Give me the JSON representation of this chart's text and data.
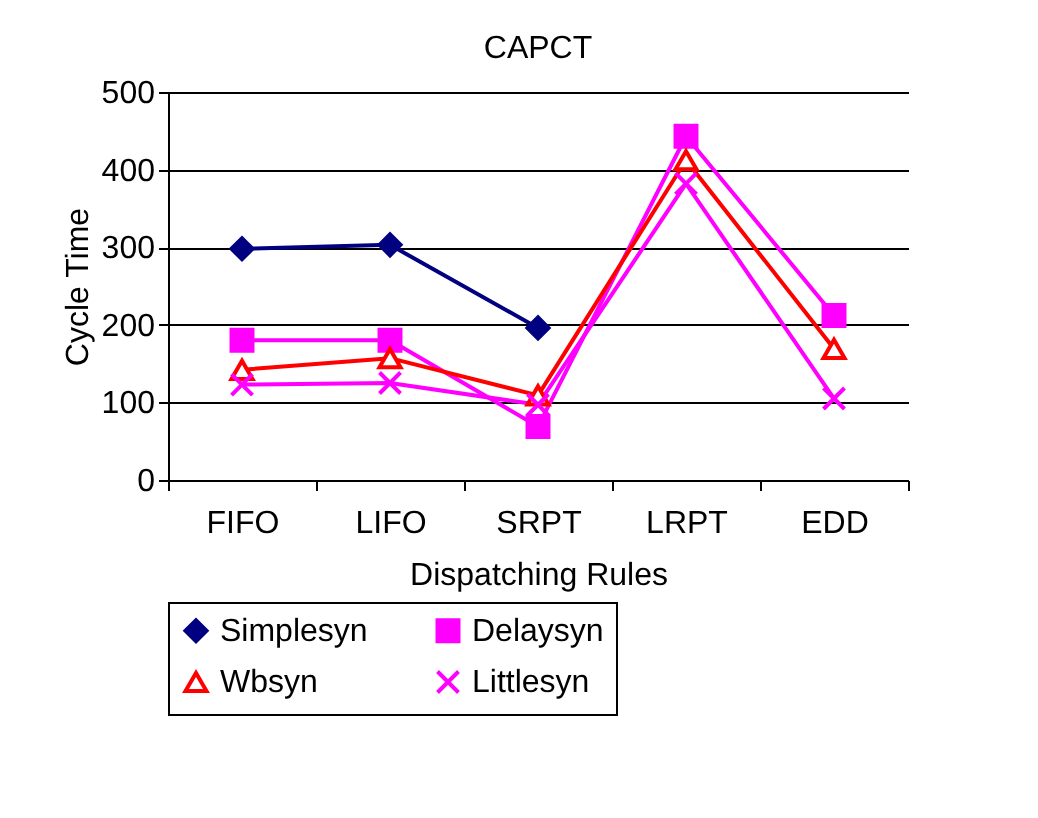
{
  "chart_data": {
    "type": "line",
    "title": "CAPCT",
    "xlabel": "Dispatching Rules",
    "ylabel": "Cycle Time",
    "categories": [
      "FIFO",
      "LIFO",
      "SRPT",
      "LRPT",
      "EDD"
    ],
    "series": [
      {
        "name": "Simplesyn",
        "color": "#000080",
        "marker": "diamond",
        "values": [
          298,
          303,
          196,
          null,
          null
        ]
      },
      {
        "name": "Delaysyn",
        "color": "#ff00ff",
        "marker": "square",
        "values": [
          180,
          180,
          69,
          443,
          212
        ]
      },
      {
        "name": "Wbsyn",
        "color": "#ff0000",
        "marker": "triangle",
        "values": [
          142,
          157,
          109,
          412,
          169
        ]
      },
      {
        "name": "Littlesyn",
        "color": "#ff00ff",
        "marker": "cross",
        "values": [
          123,
          125,
          97,
          382,
          105
        ]
      }
    ],
    "ylim": [
      0,
      500
    ],
    "yticks": [
      0,
      100,
      200,
      300,
      400,
      500
    ],
    "grid": "y",
    "legend": "bottom",
    "line_style": "solid"
  }
}
